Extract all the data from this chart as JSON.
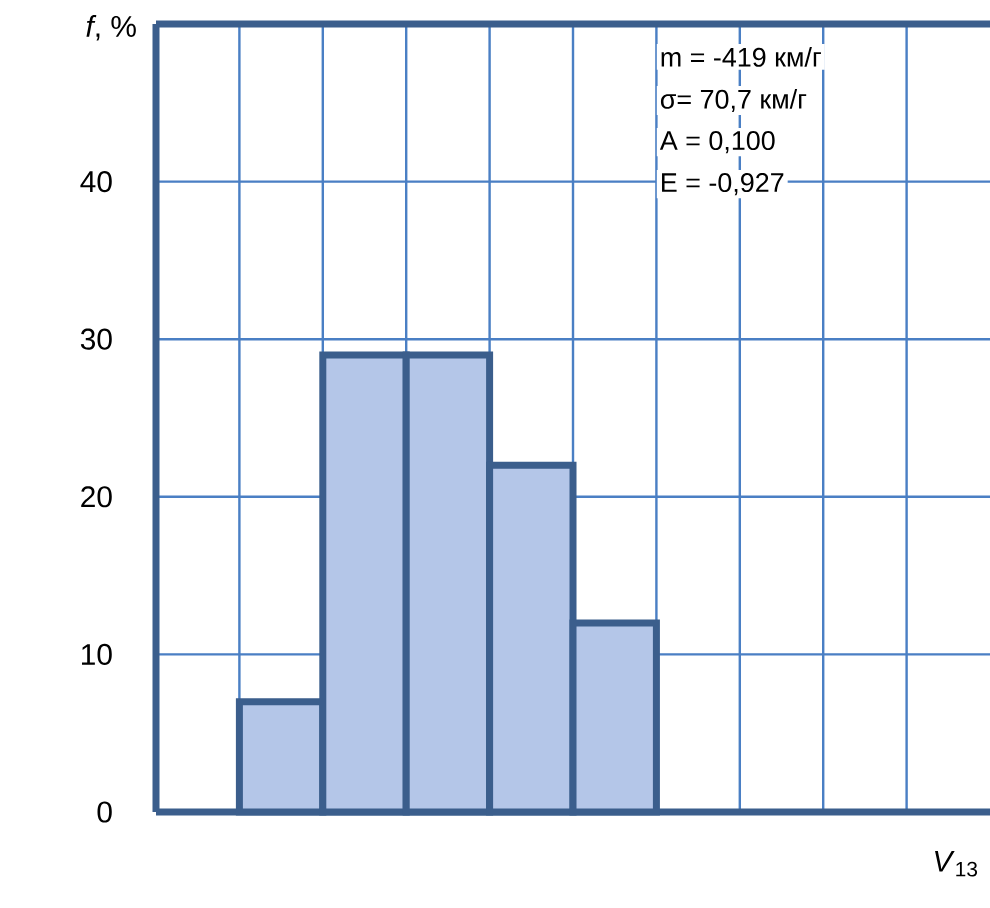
{
  "chart_data": {
    "type": "bar",
    "ylabel": "*f*, %",
    "xlabel": "*V*$_{13}$",
    "categories": [
      null,
      null,
      null,
      null,
      null,
      null,
      null,
      null,
      null,
      null
    ],
    "values": [
      null,
      7,
      29,
      29,
      22,
      12,
      null,
      null,
      null,
      null
    ],
    "color": "#b4c6e8",
    "ylim": [
      0,
      50
    ],
    "yticks": [
      0,
      10,
      20,
      30,
      40
    ],
    "grid": true,
    "annotations": [
      "m = -419 км/г",
      "σ= 70,7 км/г",
      "A = 0,100",
      "E = -0,927"
    ]
  }
}
